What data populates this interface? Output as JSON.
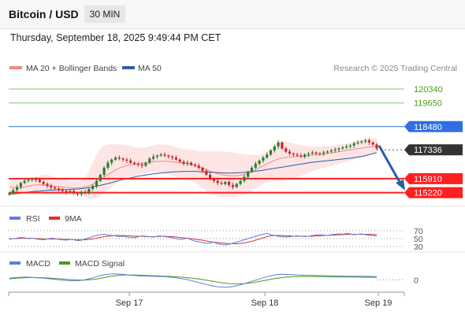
{
  "header": {
    "title": "Bitcoin / USD",
    "interval": "30 MIN",
    "timestamp": "Thursday, September 18, 2025 9:49:44 PM CET"
  },
  "legend": {
    "ma_bb": "MA 20 + Bollinger Bands",
    "ma50": "MA 50",
    "copyright": "Research © 2025 Trading Central"
  },
  "colors": {
    "ma20": "#f08a8a",
    "band": "#fde0e0",
    "ma50": "#2b5da6",
    "candle_up": "#2e7d32",
    "candle_down": "#c62828",
    "resistance_green": "#8cc56b",
    "resistance_blue": "#2f6fe0",
    "support_red": "#ff1f1f",
    "current_price": "#333333",
    "rsi": "#5b7fd6",
    "rsi_ma": "#e0302a",
    "macd": "#5b7fd6",
    "macd_signal": "#4a9a1c",
    "arrow": "#2b5da6"
  },
  "chart_data": [
    {
      "type": "line",
      "name": "price",
      "x_ticks": [
        "Sep 17",
        "Sep 18",
        "Sep 19"
      ],
      "ylim": [
        114700,
        121000
      ],
      "price_levels": [
        {
          "value": 120340,
          "label": "120340",
          "kind": "resistance"
        },
        {
          "value": 119650,
          "label": "119650",
          "kind": "resistance"
        },
        {
          "value": 118480,
          "label": "118480",
          "kind": "pivot"
        },
        {
          "value": 117336,
          "label": "117336",
          "kind": "current"
        },
        {
          "value": 115910,
          "label": "115910",
          "kind": "support"
        },
        {
          "value": 115220,
          "label": "115220",
          "kind": "support"
        }
      ],
      "close": [
        115200,
        115350,
        115500,
        115700,
        115800,
        115850,
        115900,
        115850,
        115750,
        115650,
        115550,
        115480,
        115420,
        115350,
        115300,
        115250,
        115300,
        115200,
        115150,
        115250,
        115200,
        115400,
        115550,
        115800,
        116100,
        116450,
        116700,
        116850,
        116950,
        116900,
        116850,
        116800,
        116700,
        116650,
        116600,
        116550,
        116700,
        116900,
        117000,
        117050,
        117100,
        117050,
        117000,
        116950,
        116850,
        116750,
        116650,
        116700,
        116600,
        116550,
        116450,
        116300,
        116100,
        115900,
        115800,
        115700,
        115650,
        115750,
        115600,
        115500,
        115650,
        115800,
        116000,
        116250,
        116450,
        116650,
        116800,
        116950,
        117100,
        117300,
        117500,
        117700,
        117400,
        117250,
        117150,
        117100,
        117050,
        117000,
        117100,
        117150,
        117200,
        117150,
        117150,
        117200,
        117250,
        117300,
        117350,
        117400,
        117450,
        117500,
        117550,
        117650,
        117700,
        117750,
        117800,
        117700,
        117600,
        117400
      ],
      "ma20": [
        115500,
        115480,
        115460,
        115470,
        115500,
        115540,
        115580,
        115600,
        115610,
        115600,
        115580,
        115560,
        115540,
        115520,
        115500,
        115480,
        115460,
        115450,
        115450,
        115470,
        115500,
        115560,
        115640,
        115740,
        115860,
        115990,
        116110,
        116230,
        116340,
        116430,
        116500,
        116560,
        116600,
        116620,
        116640,
        116660,
        116680,
        116710,
        116740,
        116760,
        116770,
        116770,
        116760,
        116740,
        116720,
        116700,
        116680,
        116650,
        116610,
        116560,
        116500,
        116430,
        116360,
        116290,
        116220,
        116160,
        116110,
        116080,
        116060,
        116050,
        116060,
        116080,
        116120,
        116180,
        116260,
        116350,
        116450,
        116550,
        116640,
        116730,
        116810,
        116880,
        116930,
        116960,
        116980,
        116990,
        117000,
        117010,
        117030,
        117050,
        117070,
        117090,
        117110,
        117130,
        117150,
        117180,
        117210,
        117240,
        117270,
        117300,
        117330,
        117360,
        117390,
        117420,
        117450,
        117470,
        117490,
        117500
      ],
      "bb_upper": [
        115800,
        115800,
        115800,
        115820,
        115850,
        115900,
        115950,
        116000,
        116050,
        116100,
        116100,
        116050,
        116000,
        115950,
        115900,
        115850,
        115800,
        115780,
        115780,
        115850,
        116000,
        116300,
        116700,
        117100,
        117400,
        117550,
        117600,
        117600,
        117600,
        117600,
        117580,
        117560,
        117520,
        117480,
        117450,
        117430,
        117450,
        117500,
        117550,
        117600,
        117600,
        117600,
        117570,
        117520,
        117470,
        117420,
        117380,
        117350,
        117320,
        117300,
        117280,
        117260,
        117250,
        117250,
        117250,
        117250,
        117250,
        117240,
        117220,
        117200,
        117170,
        117140,
        117110,
        117090,
        117080,
        117080,
        117100,
        117150,
        117250,
        117400,
        117550,
        117700,
        117750,
        117750,
        117700,
        117650,
        117600,
        117560,
        117540,
        117520,
        117510,
        117500,
        117500,
        117510,
        117520,
        117540,
        117560,
        117590,
        117620,
        117650,
        117680,
        117720,
        117760,
        117800,
        117850,
        117880,
        117900,
        117900
      ],
      "bb_lower": [
        115200,
        115150,
        115100,
        115100,
        115150,
        115200,
        115250,
        115250,
        115200,
        115150,
        115100,
        115080,
        115080,
        115100,
        115120,
        115120,
        115100,
        115100,
        115110,
        115100,
        115000,
        114900,
        114900,
        114950,
        115050,
        115200,
        115350,
        115500,
        115650,
        115800,
        115900,
        115950,
        116000,
        116050,
        116100,
        116150,
        116200,
        116220,
        116230,
        116220,
        116200,
        116150,
        116100,
        116050,
        116000,
        115950,
        115900,
        115850,
        115800,
        115700,
        115600,
        115450,
        115300,
        115200,
        115100,
        115050,
        115000,
        115000,
        115000,
        115000,
        115020,
        115060,
        115120,
        115200,
        115300,
        115420,
        115540,
        115650,
        115730,
        115760,
        115770,
        115780,
        115800,
        115850,
        115900,
        115950,
        116000,
        116050,
        116120,
        116200,
        116270,
        116340,
        116400,
        116450,
        116500,
        116550,
        116600,
        116650,
        116700,
        116750,
        116800,
        116850,
        116900,
        116950,
        117000,
        117050,
        117100,
        117150
      ],
      "ma50": [
        115150,
        115160,
        115180,
        115200,
        115220,
        115250,
        115270,
        115290,
        115300,
        115320,
        115330,
        115340,
        115350,
        115360,
        115370,
        115370,
        115380,
        115390,
        115400,
        115420,
        115440,
        115470,
        115500,
        115540,
        115580,
        115620,
        115670,
        115720,
        115770,
        115820,
        115870,
        115910,
        115950,
        115990,
        116030,
        116060,
        116090,
        116120,
        116150,
        116170,
        116190,
        116210,
        116230,
        116240,
        116250,
        116260,
        116270,
        116270,
        116270,
        116270,
        116260,
        116250,
        116240,
        116230,
        116220,
        116210,
        116200,
        116190,
        116190,
        116190,
        116200,
        116210,
        116220,
        116240,
        116260,
        116280,
        116300,
        116330,
        116360,
        116390,
        116420,
        116450,
        116480,
        116510,
        116540,
        116570,
        116600,
        116630,
        116660,
        116690,
        116720,
        116740,
        116760,
        116780,
        116800,
        116820,
        116840,
        116860,
        116880,
        116900,
        116920,
        116950,
        116980,
        117010,
        117050,
        117100,
        117150,
        117200
      ]
    },
    {
      "type": "line",
      "name": "RSI",
      "legend": [
        "RSI",
        "9MA"
      ],
      "ylim": [
        0,
        100
      ],
      "levels": [
        70,
        50,
        30
      ],
      "rsi": [
        48,
        50,
        51,
        53,
        52,
        50,
        51,
        49,
        48,
        47,
        49,
        51,
        50,
        48,
        47,
        46,
        48,
        47,
        45,
        46,
        49,
        52,
        55,
        58,
        60,
        61,
        59,
        58,
        57,
        55,
        56,
        54,
        53,
        52,
        55,
        57,
        56,
        55,
        54,
        56,
        57,
        55,
        54,
        52,
        50,
        48,
        49,
        51,
        47,
        44,
        42,
        40,
        38,
        39,
        41,
        37,
        35,
        34,
        36,
        38,
        41,
        44,
        47,
        50,
        53,
        56,
        59,
        61,
        63,
        60,
        58,
        56,
        55,
        54,
        55,
        56,
        57,
        56,
        55,
        56,
        58,
        59,
        60,
        59,
        58,
        60,
        61,
        62,
        61,
        63,
        62,
        60,
        61,
        62,
        60,
        59,
        58,
        57
      ],
      "ma9": [
        50,
        50,
        50,
        51,
        51,
        51,
        51,
        50,
        50,
        49,
        49,
        49,
        49,
        49,
        48,
        48,
        48,
        47,
        47,
        47,
        47,
        48,
        49,
        51,
        53,
        55,
        56,
        57,
        58,
        58,
        58,
        57,
        57,
        56,
        56,
        56,
        55,
        55,
        55,
        55,
        56,
        56,
        55,
        55,
        54,
        53,
        52,
        51,
        50,
        49,
        47,
        46,
        44,
        42,
        41,
        40,
        39,
        38,
        37,
        37,
        37,
        38,
        39,
        41,
        43,
        46,
        49,
        52,
        55,
        57,
        58,
        58,
        58,
        57,
        57,
        56,
        56,
        56,
        56,
        56,
        56,
        57,
        57,
        58,
        58,
        59,
        59,
        60,
        60,
        61,
        61,
        61,
        61,
        61,
        61,
        61,
        60,
        60
      ]
    },
    {
      "type": "line",
      "name": "MACD",
      "legend": [
        "MACD",
        "MACD Signal"
      ],
      "levels": [
        0
      ],
      "ylim": [
        -600,
        500
      ],
      "macd": [
        80,
        100,
        120,
        130,
        140,
        135,
        125,
        110,
        95,
        80,
        60,
        40,
        20,
        0,
        -20,
        -40,
        -50,
        -55,
        -50,
        -30,
        0,
        50,
        100,
        160,
        220,
        260,
        290,
        300,
        305,
        295,
        280,
        260,
        240,
        220,
        205,
        195,
        190,
        185,
        180,
        175,
        170,
        160,
        145,
        125,
        100,
        70,
        40,
        5,
        -40,
        -90,
        -140,
        -190,
        -240,
        -290,
        -330,
        -360,
        -380,
        -385,
        -375,
        -350,
        -310,
        -260,
        -200,
        -140,
        -80,
        -20,
        40,
        100,
        160,
        210,
        250,
        275,
        285,
        280,
        270,
        260,
        250,
        240,
        232,
        226,
        222,
        218,
        214,
        210,
        206,
        202,
        198,
        195,
        192,
        190,
        188,
        186,
        184,
        182,
        180,
        175,
        170,
        165
      ],
      "signal": [
        50,
        65,
        80,
        92,
        105,
        112,
        116,
        116,
        112,
        106,
        96,
        84,
        70,
        55,
        40,
        24,
        10,
        -2,
        -10,
        -14,
        -12,
        -2,
        15,
        42,
        75,
        112,
        150,
        185,
        212,
        232,
        244,
        250,
        250,
        246,
        240,
        233,
        226,
        218,
        210,
        202,
        195,
        188,
        180,
        170,
        158,
        144,
        128,
        110,
        88,
        64,
        38,
        10,
        -20,
        -52,
        -86,
        -120,
        -150,
        -178,
        -198,
        -210,
        -214,
        -210,
        -198,
        -178,
        -152,
        -122,
        -88,
        -50,
        -12,
        25,
        60,
        90,
        115,
        135,
        150,
        160,
        166,
        170,
        172,
        172,
        170,
        168,
        166,
        162,
        158,
        154,
        150,
        147,
        144,
        142,
        140,
        138,
        136,
        134,
        132,
        130,
        128,
        126
      ]
    }
  ]
}
